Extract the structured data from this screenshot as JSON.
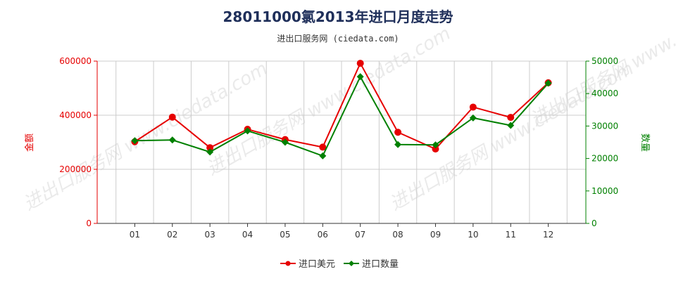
{
  "header": {
    "title": "28011000氯2013年进口月度走势",
    "subtitle": "进出口服务网 (ciedata.com)"
  },
  "watermark": "进出口服务网 www.ciedata.com",
  "colors": {
    "left_series": "#e60000",
    "right_series": "#008000",
    "grid": "#cccccc",
    "axis": "#333333"
  },
  "chart_data": {
    "type": "line",
    "categories": [
      "01",
      "02",
      "03",
      "04",
      "05",
      "06",
      "07",
      "08",
      "09",
      "10",
      "11",
      "12"
    ],
    "left_axis": {
      "label": "金额",
      "ylim": [
        0,
        600000
      ],
      "ticks": [
        "0",
        "200000",
        "400000",
        "600000"
      ],
      "tick_values": [
        0,
        200000,
        400000,
        600000
      ]
    },
    "right_axis": {
      "label": "数量",
      "ylim": [
        0,
        50000
      ],
      "ticks": [
        "0",
        "10000",
        "20000",
        "30000",
        "40000",
        "50000"
      ],
      "tick_values": [
        0,
        10000,
        20000,
        30000,
        40000,
        50000
      ]
    },
    "series": [
      {
        "name": "进口美元",
        "axis": "left",
        "color": "#e60000",
        "values": [
          302000,
          393000,
          280000,
          348000,
          310000,
          282000,
          592000,
          337000,
          275000,
          430000,
          392000,
          520000
        ]
      },
      {
        "name": "进口数量",
        "axis": "right",
        "color": "#008000",
        "values": [
          25500,
          25700,
          22000,
          28500,
          25000,
          20800,
          45200,
          24300,
          24200,
          32500,
          30200,
          43200
        ]
      }
    ],
    "grid": true,
    "legend_position": "bottom-center"
  }
}
